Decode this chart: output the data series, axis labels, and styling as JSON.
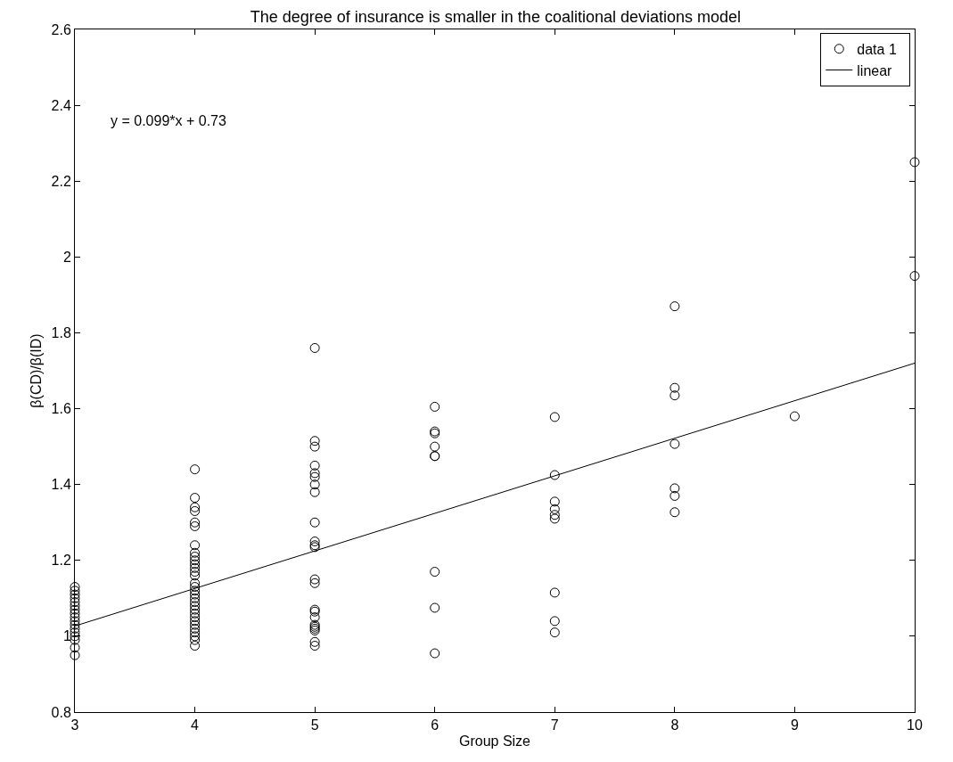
{
  "chart_data": {
    "type": "scatter",
    "title": "The degree of insurance is smaller in the coalitional deviations model",
    "xlabel": "Group Size",
    "ylabel": "β(CD)/β(ID)",
    "annotations": [
      "y = 0.099*x + 0.73"
    ],
    "xlim": [
      3,
      10
    ],
    "xticks": [
      3,
      4,
      5,
      6,
      7,
      8,
      9,
      10
    ],
    "ylim": [
      0.8,
      2.6
    ],
    "yticks": [
      0.8,
      1,
      1.2,
      1.4,
      1.6,
      1.8,
      2,
      2.2,
      2.4,
      2.6
    ],
    "grid": false,
    "legend": "top right",
    "marker": "circle",
    "series": [
      {
        "name": "data 1",
        "color": "#000000",
        "x": [
          3,
          3,
          3,
          3,
          3,
          3,
          3,
          3,
          3,
          3,
          3,
          3,
          3,
          3,
          3,
          3,
          3,
          4,
          4,
          4,
          4,
          4,
          4,
          4,
          4,
          4,
          4,
          4,
          4,
          4,
          4,
          4,
          4,
          4,
          4,
          4,
          4,
          4,
          4,
          4,
          4,
          4,
          4,
          4,
          4,
          4,
          4,
          4,
          5,
          5,
          5,
          5,
          5,
          5,
          5,
          5,
          5,
          5,
          5,
          5,
          5,
          5,
          5,
          5,
          5,
          5,
          5,
          5,
          5,
          5,
          5,
          6,
          6,
          6,
          6,
          6,
          6,
          6,
          6,
          6,
          7,
          7,
          7,
          7,
          7,
          7,
          7,
          7,
          7,
          8,
          8,
          8,
          8,
          8,
          8,
          8,
          9,
          10,
          10
        ],
        "values": [
          0.95,
          0.97,
          0.99,
          1.0,
          1.01,
          1.02,
          1.03,
          1.04,
          1.05,
          1.06,
          1.07,
          1.08,
          1.09,
          1.1,
          1.11,
          1.12,
          1.13,
          0.975,
          0.99,
          1.0,
          1.01,
          1.02,
          1.03,
          1.04,
          1.05,
          1.06,
          1.07,
          1.08,
          1.09,
          1.1,
          1.11,
          1.12,
          1.13,
          1.14,
          1.16,
          1.17,
          1.18,
          1.19,
          1.2,
          1.21,
          1.22,
          1.24,
          1.29,
          1.3,
          1.33,
          1.34,
          1.365,
          1.44,
          1.76,
          1.515,
          1.5,
          1.45,
          1.43,
          1.42,
          1.4,
          1.38,
          1.3,
          1.25,
          1.24,
          1.235,
          1.15,
          1.14,
          1.07,
          1.065,
          1.05,
          1.03,
          1.025,
          1.02,
          1.015,
          0.985,
          0.975,
          1.605,
          1.54,
          1.535,
          1.5,
          1.475,
          1.475,
          1.17,
          1.075,
          0.955,
          1.578,
          1.425,
          1.355,
          1.335,
          1.32,
          1.31,
          1.115,
          1.04,
          1.01,
          1.87,
          1.655,
          1.635,
          1.507,
          1.39,
          1.37,
          1.327,
          1.58,
          2.25,
          1.95
        ]
      },
      {
        "name": "linear",
        "color": "#000000",
        "type": "line",
        "marker": "none",
        "line_style": "solid",
        "x": [
          3,
          10
        ],
        "values": [
          1.027,
          1.72
        ]
      }
    ]
  }
}
